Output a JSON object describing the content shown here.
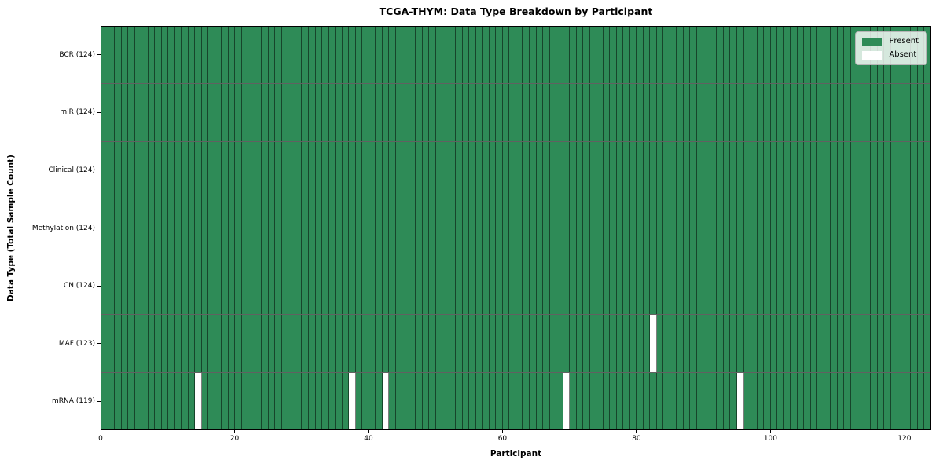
{
  "chart_data": {
    "type": "heatmap",
    "title": "TCGA-THYM: Data Type Breakdown by Participant",
    "xlabel": "Participant",
    "ylabel": "Data Type (Total Sample Count)",
    "x_ticks": [
      0,
      20,
      40,
      60,
      80,
      100,
      120
    ],
    "x_range": [
      0,
      124
    ],
    "n_participants": 124,
    "grid": true,
    "legend_position": "upper right",
    "rows": [
      {
        "label": "BCR (124)",
        "data_type": "BCR",
        "present_count": 124,
        "absent_participants": []
      },
      {
        "label": "miR (124)",
        "data_type": "miR",
        "present_count": 124,
        "absent_participants": []
      },
      {
        "label": "Clinical (124)",
        "data_type": "Clinical",
        "present_count": 124,
        "absent_participants": []
      },
      {
        "label": "Methylation (124)",
        "data_type": "Methylation",
        "present_count": 124,
        "absent_participants": []
      },
      {
        "label": "CN (124)",
        "data_type": "CN",
        "present_count": 124,
        "absent_participants": []
      },
      {
        "label": "MAF (123)",
        "data_type": "MAF",
        "present_count": 123,
        "absent_participants": [
          82
        ]
      },
      {
        "label": "mRNA (119)",
        "data_type": "mRNA",
        "present_count": 119,
        "absent_participants": [
          14,
          37,
          42,
          69,
          95
        ]
      }
    ],
    "legend": [
      {
        "label": "Present",
        "color": "#2e8b57"
      },
      {
        "label": "Absent",
        "color": "#ffffff"
      }
    ],
    "colors": {
      "present": "#2e8b57",
      "absent": "#ffffff",
      "cell_border": "rgba(0,0,0,0.50)",
      "row_border": "rgba(0,0,0,0.62)",
      "spine": "#000000",
      "legend_background": "rgba(255,255,255,0.8)",
      "legend_border": "#b6b6b6"
    }
  }
}
